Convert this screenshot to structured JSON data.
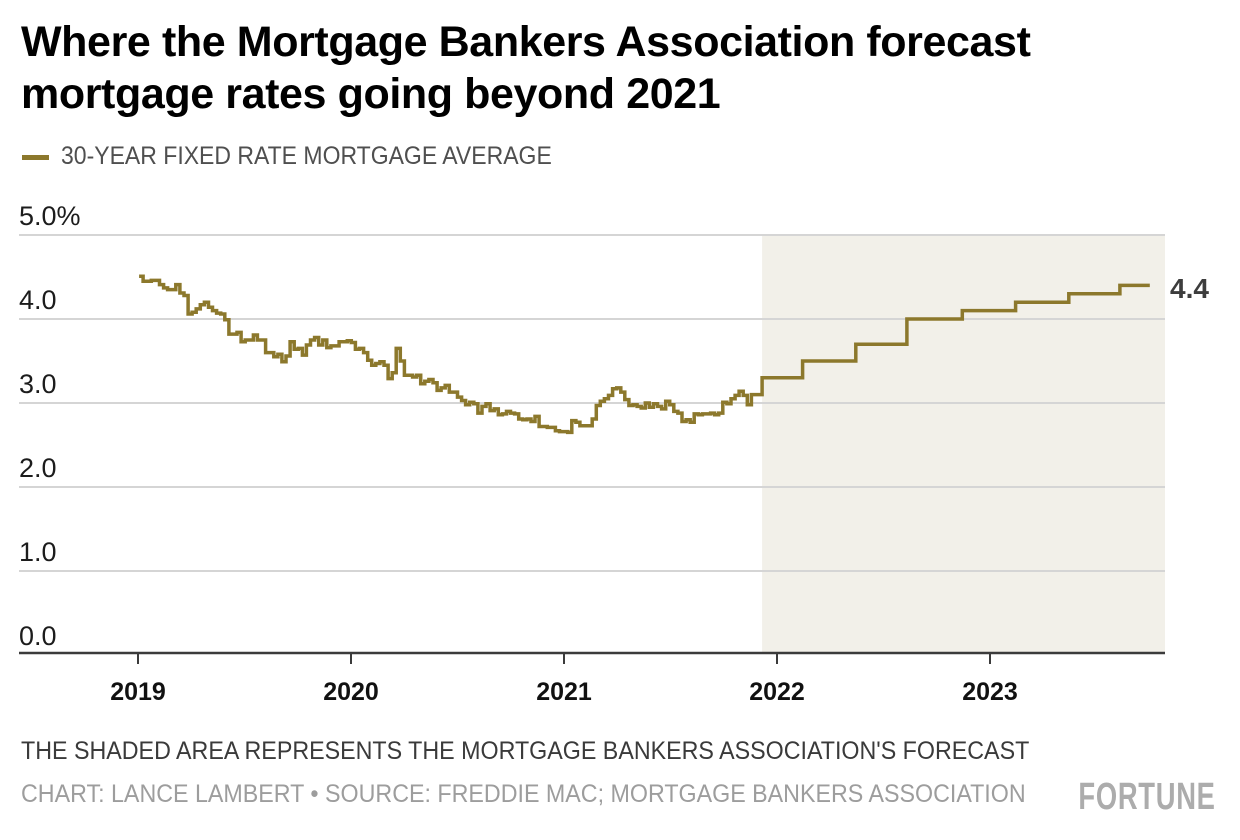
{
  "header": {
    "title_line1": "Where the Mortgage Bankers Association forecast",
    "title_line2": "mortgage rates going beyond 2021"
  },
  "legend": {
    "label": "30-YEAR FIXED RATE MORTGAGE AVERAGE"
  },
  "footer": {
    "note": "THE SHADED AREA REPRESENTS THE MORTGAGE BANKERS ASSOCIATION'S FORECAST",
    "credit": "CHART: LANCE LAMBERT • SOURCE: FREDDIE MAC; MORTGAGE BANKERS ASSOCIATION",
    "brand": "FORTUNE"
  },
  "chart_data": {
    "type": "line",
    "title": "Where the Mortgage Bankers Association forecast mortgage rates going beyond 2021",
    "series_name": "30-YEAR FIXED RATE MORTGAGE AVERAGE",
    "unit": "%",
    "ylim": [
      0,
      5
    ],
    "xlim": [
      2018.43,
      2023.82
    ],
    "grid": true,
    "legend_position": "top-left",
    "y_ticks": [
      {
        "label": "5.0%",
        "value": 5
      },
      {
        "label": "4.0",
        "value": 4
      },
      {
        "label": "3.0",
        "value": 3
      },
      {
        "label": "2.0",
        "value": 2
      },
      {
        "label": "1.0",
        "value": 1
      },
      {
        "label": "0.0",
        "value": 0
      }
    ],
    "x_ticks": [
      {
        "label": "2019",
        "value": 2019
      },
      {
        "label": "2020",
        "value": 2020
      },
      {
        "label": "2021",
        "value": 2021
      },
      {
        "label": "2022",
        "value": 2022
      },
      {
        "label": "2023",
        "value": 2023
      }
    ],
    "actual": {
      "cadence": "weekly",
      "start_year": 2019.005,
      "step_years": 0.019165,
      "values": [
        4.51,
        4.45,
        4.45,
        4.46,
        4.46,
        4.41,
        4.37,
        4.35,
        4.35,
        4.41,
        4.31,
        4.28,
        4.06,
        4.08,
        4.12,
        4.17,
        4.2,
        4.14,
        4.1,
        4.07,
        4.06,
        3.99,
        3.82,
        3.82,
        3.84,
        3.73,
        3.75,
        3.75,
        3.81,
        3.75,
        3.75,
        3.6,
        3.6,
        3.55,
        3.58,
        3.49,
        3.56,
        3.73,
        3.64,
        3.65,
        3.57,
        3.69,
        3.75,
        3.78,
        3.69,
        3.75,
        3.66,
        3.68,
        3.68,
        3.73,
        3.73,
        3.74,
        3.72,
        3.64,
        3.65,
        3.6,
        3.51,
        3.45,
        3.47,
        3.49,
        3.45,
        3.29,
        3.36,
        3.65,
        3.5,
        3.33,
        3.33,
        3.31,
        3.33,
        3.23,
        3.26,
        3.28,
        3.24,
        3.15,
        3.18,
        3.21,
        3.13,
        3.13,
        3.07,
        3.03,
        2.98,
        3.01,
        2.99,
        2.88,
        2.96,
        2.99,
        2.91,
        2.93,
        2.86,
        2.87,
        2.9,
        2.88,
        2.87,
        2.81,
        2.8,
        2.81,
        2.78,
        2.84,
        2.72,
        2.72,
        2.71,
        2.71,
        2.67,
        2.66,
        2.66,
        2.65,
        2.79,
        2.77,
        2.73,
        2.73,
        2.73,
        2.81,
        2.97,
        3.02,
        3.05,
        3.09,
        3.17,
        3.18,
        3.13,
        3.04,
        2.97,
        2.98,
        2.96,
        2.94,
        3.0,
        2.95,
        2.99,
        2.96,
        2.93,
        3.02,
        2.98,
        2.9,
        2.88,
        2.78,
        2.8,
        2.77,
        2.87,
        2.86,
        2.87,
        2.87,
        2.88,
        2.86,
        2.88,
        3.01,
        2.99,
        3.05,
        3.09,
        3.14,
        3.09,
        2.98,
        3.1,
        3.1
      ]
    },
    "forecast_steps": [
      {
        "from": 2021.93,
        "to": 2022.12,
        "value": 3.3
      },
      {
        "from": 2022.12,
        "to": 2022.37,
        "value": 3.5
      },
      {
        "from": 2022.37,
        "to": 2022.61,
        "value": 3.7
      },
      {
        "from": 2022.61,
        "to": 2022.87,
        "value": 4.0
      },
      {
        "from": 2022.87,
        "to": 2023.12,
        "value": 4.1
      },
      {
        "from": 2023.12,
        "to": 2023.37,
        "value": 4.2
      },
      {
        "from": 2023.37,
        "to": 2023.61,
        "value": 4.3
      },
      {
        "from": 2023.61,
        "to": 2023.75,
        "value": 4.4
      }
    ],
    "forecast_region": {
      "start_year": 2021.93,
      "end_year": 2023.82
    },
    "end_label": "4.4",
    "colors": {
      "line": "#8C782C",
      "forecast_shade": "#F2F0E9",
      "grid": "#D5D5D5",
      "axis": "#3B3B3B",
      "y_label": "#1C1C1C",
      "x_label": "#111111",
      "end_label": "#3D3D3D"
    }
  }
}
